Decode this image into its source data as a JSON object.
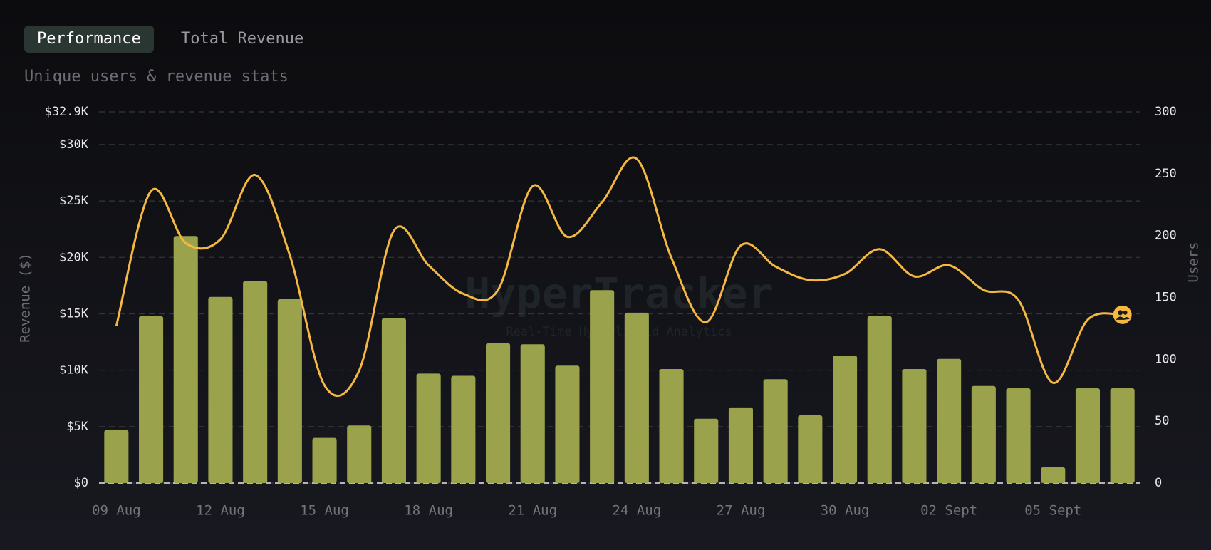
{
  "tabs": [
    "Performance",
    "Total Revenue"
  ],
  "active_tab": 0,
  "chart_data": {
    "type": "bar-line",
    "subtitle": "Unique users & revenue stats",
    "ylabel": "Revenue ($)",
    "y2label": "Users",
    "watermark": {
      "title": "HyperTracker",
      "subtitle": "Real-Time Hyperliquid Analytics"
    },
    "categories": [
      "09 Aug",
      null,
      null,
      "12 Aug",
      null,
      null,
      "15 Aug",
      null,
      null,
      "18 Aug",
      null,
      null,
      "21 Aug",
      null,
      null,
      "24 Aug",
      null,
      null,
      "27 Aug",
      null,
      null,
      "30 Aug",
      null,
      null,
      "02 Sept",
      null,
      null,
      "05 Sept",
      null,
      null
    ],
    "series": [
      {
        "type": "bar",
        "color": "#9aa24b",
        "values": [
          4700,
          14800,
          21900,
          16500,
          17900,
          16300,
          4000,
          5100,
          14600,
          9700,
          9500,
          12400,
          12300,
          10400,
          17100,
          15100,
          10100,
          5700,
          6700,
          9200,
          6000,
          11300,
          14800,
          10100,
          11000,
          8600,
          8400,
          1400,
          8400,
          8400
        ]
      },
      {
        "type": "line",
        "axis": "y2",
        "color": "#f5b942",
        "values": [
          127,
          236,
          194,
          197,
          249,
          184,
          79,
          91,
          204,
          176,
          153,
          156,
          240,
          199,
          227,
          262,
          182,
          130,
          192,
          175,
          164,
          169,
          189,
          167,
          176,
          156,
          148,
          81,
          132,
          136
        ]
      }
    ],
    "ylim": [
      0,
      32900
    ],
    "yticks": [
      {
        "value": 0,
        "label": "$0"
      },
      {
        "value": 5000,
        "label": "$5K"
      },
      {
        "value": 10000,
        "label": "$10K"
      },
      {
        "value": 15000,
        "label": "$15K"
      },
      {
        "value": 20000,
        "label": "$20K"
      },
      {
        "value": 25000,
        "label": "$25K"
      },
      {
        "value": 30000,
        "label": "$30K"
      },
      {
        "value": 32900,
        "label": "$32.9K"
      }
    ],
    "y2lim": [
      0,
      300
    ],
    "y2ticks": [
      0,
      50,
      100,
      150,
      200,
      250,
      300
    ],
    "grid": true
  }
}
